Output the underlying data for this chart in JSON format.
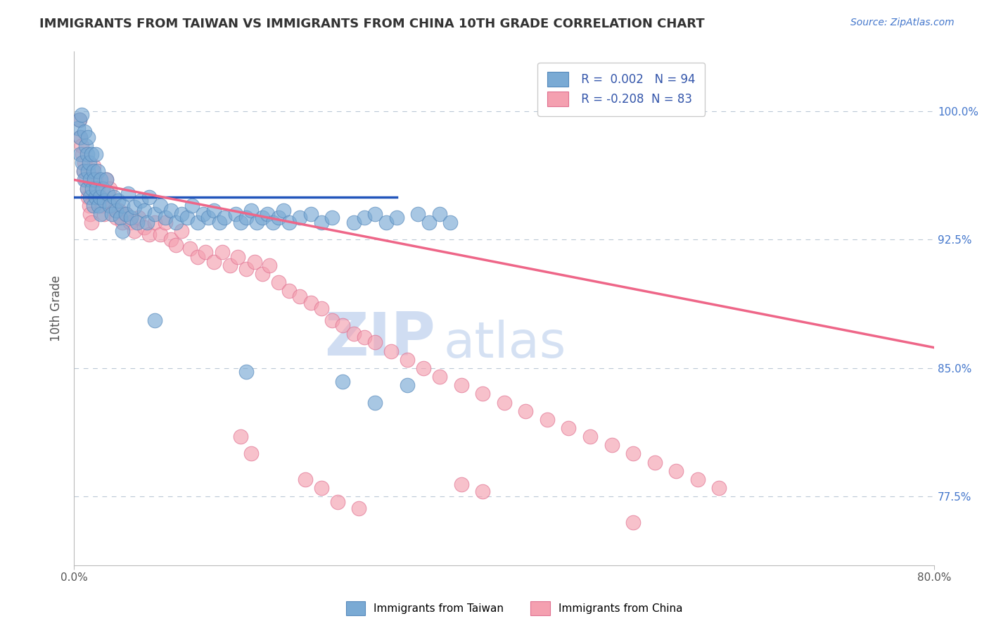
{
  "title": "IMMIGRANTS FROM TAIWAN VS IMMIGRANTS FROM CHINA 10TH GRADE CORRELATION CHART",
  "source_text": "Source: ZipAtlas.com",
  "ylabel": "10th Grade",
  "ytick_labels": [
    "100.0%",
    "92.5%",
    "85.0%",
    "77.5%"
  ],
  "ytick_values": [
    1.0,
    0.925,
    0.85,
    0.775
  ],
  "xlim": [
    0.0,
    0.8
  ],
  "ylim": [
    0.735,
    1.035
  ],
  "legend_r1": "R =  0.002",
  "legend_n1": "N = 94",
  "legend_r2": "R = -0.208",
  "legend_n2": "N = 83",
  "legend_label1": "Immigrants from Taiwan",
  "legend_label2": "Immigrants from China",
  "blue_color": "#7AAAD4",
  "pink_color": "#F4A0B0",
  "blue_edge": "#5588BB",
  "pink_edge": "#E07090",
  "trend_blue": "#2255BB",
  "trend_pink": "#EE6688",
  "watermark_zip": "ZIP",
  "watermark_atlas": "atlas",
  "taiwan_x": [
    0.004,
    0.005,
    0.006,
    0.006,
    0.007,
    0.008,
    0.009,
    0.01,
    0.01,
    0.011,
    0.012,
    0.012,
    0.013,
    0.013,
    0.014,
    0.015,
    0.015,
    0.016,
    0.017,
    0.018,
    0.018,
    0.019,
    0.02,
    0.02,
    0.021,
    0.022,
    0.023,
    0.024,
    0.025,
    0.025,
    0.027,
    0.028,
    0.03,
    0.031,
    0.033,
    0.035,
    0.037,
    0.039,
    0.041,
    0.043,
    0.045,
    0.048,
    0.05,
    0.053,
    0.056,
    0.059,
    0.062,
    0.065,
    0.068,
    0.07,
    0.075,
    0.08,
    0.085,
    0.09,
    0.095,
    0.1,
    0.105,
    0.11,
    0.115,
    0.12,
    0.125,
    0.13,
    0.135,
    0.14,
    0.15,
    0.155,
    0.16,
    0.165,
    0.17,
    0.175,
    0.18,
    0.185,
    0.19,
    0.195,
    0.2,
    0.21,
    0.22,
    0.23,
    0.24,
    0.25,
    0.26,
    0.27,
    0.28,
    0.29,
    0.3,
    0.31,
    0.32,
    0.33,
    0.34,
    0.35,
    0.28,
    0.16,
    0.075,
    0.045
  ],
  "taiwan_y": [
    0.99,
    0.995,
    0.985,
    0.975,
    0.998,
    0.97,
    0.965,
    0.988,
    0.96,
    0.98,
    0.975,
    0.955,
    0.985,
    0.965,
    0.97,
    0.96,
    0.95,
    0.975,
    0.955,
    0.965,
    0.945,
    0.96,
    0.975,
    0.95,
    0.955,
    0.965,
    0.945,
    0.95,
    0.96,
    0.94,
    0.955,
    0.948,
    0.96,
    0.952,
    0.945,
    0.94,
    0.95,
    0.942,
    0.948,
    0.938,
    0.945,
    0.94,
    0.952,
    0.938,
    0.944,
    0.935,
    0.948,
    0.942,
    0.935,
    0.95,
    0.94,
    0.945,
    0.938,
    0.942,
    0.935,
    0.94,
    0.938,
    0.945,
    0.935,
    0.94,
    0.938,
    0.942,
    0.935,
    0.938,
    0.94,
    0.935,
    0.938,
    0.942,
    0.935,
    0.938,
    0.94,
    0.935,
    0.938,
    0.942,
    0.935,
    0.938,
    0.94,
    0.935,
    0.938,
    0.842,
    0.935,
    0.938,
    0.94,
    0.935,
    0.938,
    0.84,
    0.94,
    0.935,
    0.94,
    0.935,
    0.83,
    0.848,
    0.878,
    0.93
  ],
  "china_x": [
    0.005,
    0.006,
    0.007,
    0.008,
    0.009,
    0.01,
    0.011,
    0.012,
    0.013,
    0.014,
    0.015,
    0.016,
    0.018,
    0.02,
    0.022,
    0.024,
    0.026,
    0.028,
    0.03,
    0.033,
    0.036,
    0.039,
    0.042,
    0.045,
    0.048,
    0.052,
    0.056,
    0.06,
    0.065,
    0.07,
    0.075,
    0.08,
    0.085,
    0.09,
    0.095,
    0.1,
    0.108,
    0.115,
    0.122,
    0.13,
    0.138,
    0.145,
    0.152,
    0.16,
    0.168,
    0.175,
    0.182,
    0.19,
    0.2,
    0.21,
    0.22,
    0.23,
    0.24,
    0.25,
    0.26,
    0.27,
    0.28,
    0.295,
    0.31,
    0.325,
    0.34,
    0.36,
    0.38,
    0.4,
    0.42,
    0.44,
    0.46,
    0.48,
    0.5,
    0.52,
    0.54,
    0.56,
    0.58,
    0.6,
    0.155,
    0.165,
    0.215,
    0.23,
    0.245,
    0.265,
    0.36,
    0.38,
    0.52
  ],
  "china_y": [
    0.995,
    0.985,
    0.98,
    0.975,
    0.965,
    0.97,
    0.96,
    0.955,
    0.95,
    0.945,
    0.94,
    0.935,
    0.968,
    0.96,
    0.955,
    0.95,
    0.945,
    0.94,
    0.96,
    0.955,
    0.945,
    0.938,
    0.942,
    0.935,
    0.94,
    0.935,
    0.93,
    0.938,
    0.932,
    0.928,
    0.935,
    0.928,
    0.935,
    0.925,
    0.922,
    0.93,
    0.92,
    0.915,
    0.918,
    0.912,
    0.918,
    0.91,
    0.915,
    0.908,
    0.912,
    0.905,
    0.91,
    0.9,
    0.895,
    0.892,
    0.888,
    0.885,
    0.878,
    0.875,
    0.87,
    0.868,
    0.865,
    0.86,
    0.855,
    0.85,
    0.845,
    0.84,
    0.835,
    0.83,
    0.825,
    0.82,
    0.815,
    0.81,
    0.805,
    0.8,
    0.795,
    0.79,
    0.785,
    0.78,
    0.81,
    0.8,
    0.785,
    0.78,
    0.772,
    0.768,
    0.782,
    0.778,
    0.76
  ],
  "blue_trend_x": [
    0.0,
    0.3
  ],
  "blue_trend_y": [
    0.95,
    0.95
  ],
  "pink_trend_x": [
    0.0,
    0.8
  ],
  "pink_trend_y": [
    0.96,
    0.862
  ]
}
